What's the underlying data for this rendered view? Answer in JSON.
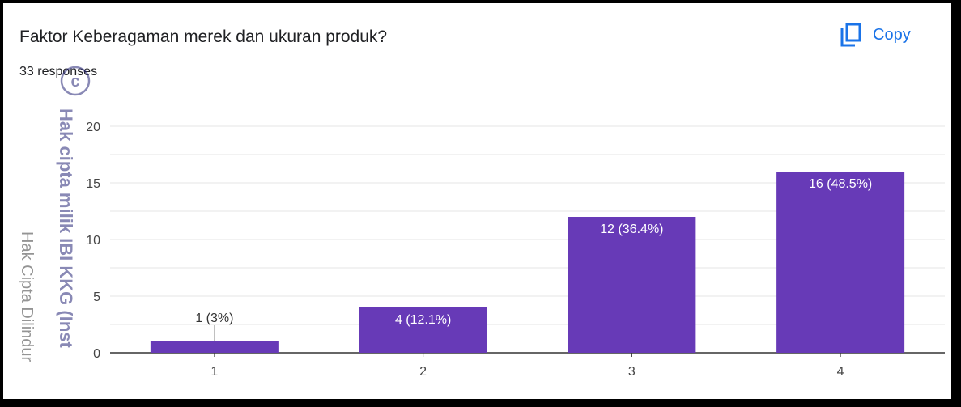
{
  "header": {
    "title": "Faktor Keberagaman merek dan ukuran produk?",
    "responses": "33 responses",
    "copy_label": "Copy",
    "copy_icon": "copy-icon"
  },
  "watermark": {
    "bold_text": "Hak cipta milik IBI KKG (Inst",
    "light_text": "Hak Cipta Dilindur",
    "seal": "c"
  },
  "colors": {
    "bar": "#673ab7",
    "grid": "#e6e6e6",
    "axis": "#333333",
    "accent": "#1a73e8"
  },
  "chart_data": {
    "type": "bar",
    "categories": [
      "1",
      "2",
      "3",
      "4"
    ],
    "values": [
      1,
      4,
      12,
      16
    ],
    "data_labels": [
      "1 (3%)",
      "4 (12.1%)",
      "12 (36.4%)",
      "16 (48.5%)"
    ],
    "ylim": [
      0,
      20
    ],
    "yticks": [
      0,
      5,
      10,
      15,
      20
    ],
    "grid": true,
    "title": "Faktor Keberagaman merek dan ukuran produk?",
    "xlabel": "",
    "ylabel": ""
  }
}
